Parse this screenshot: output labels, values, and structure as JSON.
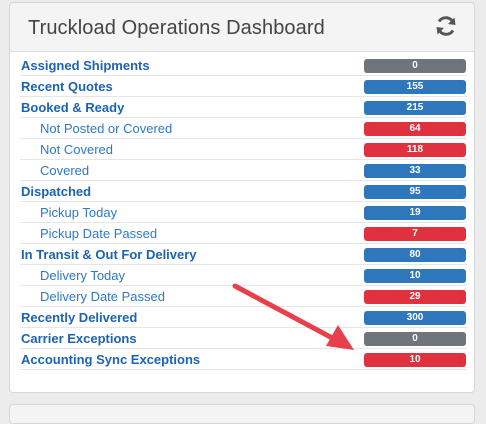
{
  "dashboard": {
    "title": "Truckload Operations Dashboard",
    "refresh_icon": "refresh-icon",
    "colors": {
      "blue": "#2e77bc",
      "red": "#e0313f",
      "gray": "#6e757c",
      "arrow": "#e8404a"
    },
    "rows": [
      {
        "label": "Assigned Shipments",
        "count": "0",
        "level": "bold",
        "color": "gray"
      },
      {
        "label": "Recent Quotes",
        "count": "155",
        "level": "bold",
        "color": "blue"
      },
      {
        "label": "Booked & Ready",
        "count": "215",
        "level": "bold",
        "color": "blue"
      },
      {
        "label": "Not Posted or Covered",
        "count": "64",
        "level": "sub",
        "color": "red"
      },
      {
        "label": "Not Covered",
        "count": "118",
        "level": "sub",
        "color": "red"
      },
      {
        "label": "Covered",
        "count": "33",
        "level": "sub",
        "color": "blue"
      },
      {
        "label": "Dispatched",
        "count": "95",
        "level": "bold",
        "color": "blue"
      },
      {
        "label": "Pickup Today",
        "count": "19",
        "level": "sub",
        "color": "blue"
      },
      {
        "label": "Pickup Date Passed",
        "count": "7",
        "level": "sub",
        "color": "red"
      },
      {
        "label": "In Transit & Out For Delivery",
        "count": "80",
        "level": "bold",
        "color": "blue"
      },
      {
        "label": "Delivery Today",
        "count": "10",
        "level": "sub",
        "color": "blue"
      },
      {
        "label": "Delivery Date Passed",
        "count": "29",
        "level": "sub",
        "color": "red"
      },
      {
        "label": "Recently Delivered",
        "count": "300",
        "level": "bold",
        "color": "blue"
      },
      {
        "label": "Carrier Exceptions",
        "count": "0",
        "level": "bold",
        "color": "gray"
      },
      {
        "label": "Accounting Sync Exceptions",
        "count": "10",
        "level": "bold",
        "color": "red"
      }
    ]
  }
}
